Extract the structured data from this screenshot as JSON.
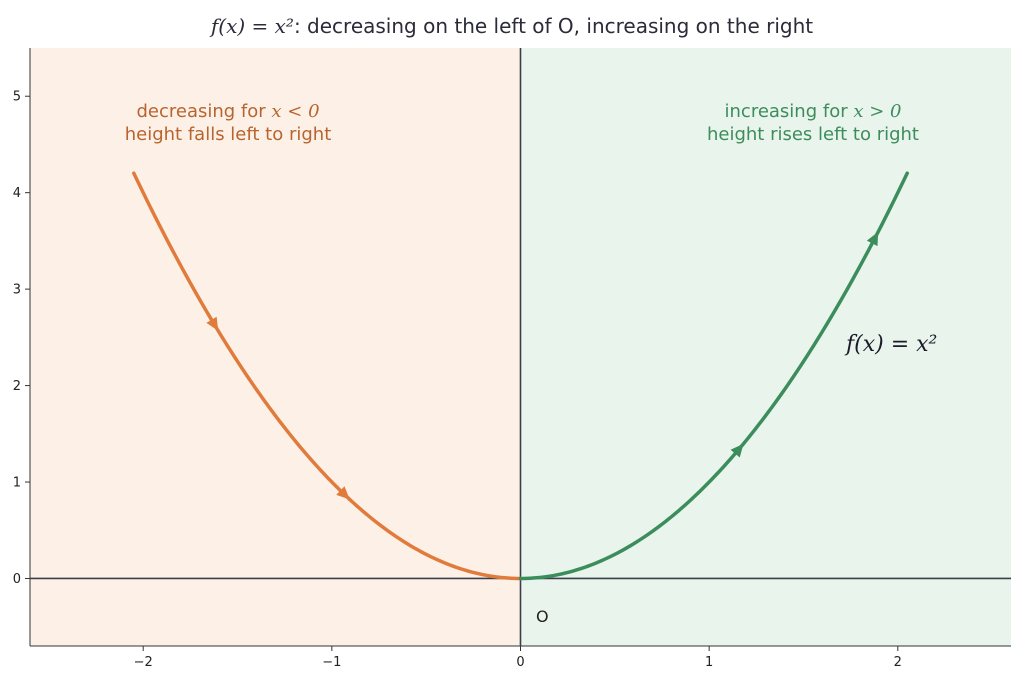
{
  "chart_data": {
    "type": "line",
    "title": {
      "math": "f(x) = x²",
      "text": ": decreasing on the left of O, increasing on the right"
    },
    "function": "x^2",
    "xlim": [
      -2.6,
      2.6
    ],
    "ylim": [
      -0.7,
      5.5
    ],
    "x_ticks": [
      -2,
      -1,
      0,
      1,
      2
    ],
    "x_tick_labels": [
      "−2",
      "−1",
      "0",
      "1",
      "2"
    ],
    "y_ticks": [
      0,
      1,
      2,
      3,
      4,
      5
    ],
    "y_tick_labels": [
      "0",
      "1",
      "2",
      "3",
      "4",
      "5"
    ],
    "grid": false,
    "regions": [
      {
        "x_range": [
          -2.6,
          0
        ],
        "color": "#fdf0e7"
      },
      {
        "x_range": [
          0,
          2.6
        ],
        "color": "#e9f4ec"
      }
    ],
    "series": [
      {
        "x_range": [
          -2.05,
          0
        ],
        "color": "#e07b3c",
        "arrow_x": [
          -1.62,
          -0.93
        ],
        "arrow_direction": "down"
      },
      {
        "x_range": [
          0,
          2.05
        ],
        "color": "#3c8d5c",
        "arrow_x": [
          1.16,
          1.88
        ],
        "arrow_direction": "up"
      }
    ],
    "annotations": {
      "left": {
        "line1_prefix": "decreasing for",
        "line1_math": "x < 0",
        "line2": "height falls left to right",
        "color": "#b8642e"
      },
      "right": {
        "line1_prefix": "increasing for",
        "line1_math": "x > 0",
        "line2": "height rises left to right",
        "color": "#3c8d5c"
      },
      "origin": "O",
      "function_label": "f(x) = x²"
    }
  }
}
